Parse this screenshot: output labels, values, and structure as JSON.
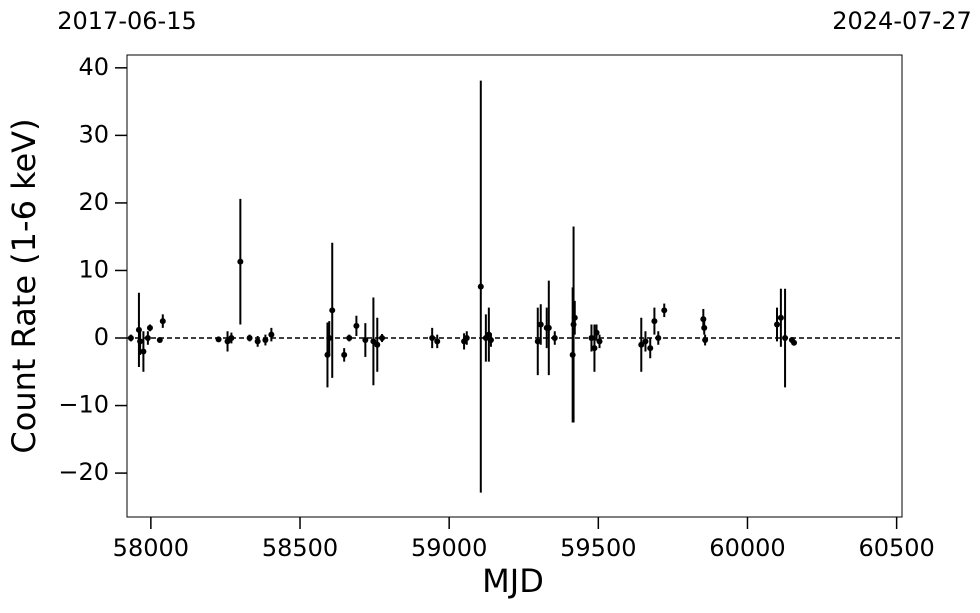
{
  "chart_data": {
    "type": "errorbar",
    "xlabel": "MJD",
    "ylabel": "Count Rate (1-6 keV)",
    "x": [
      57933,
      57960,
      57964,
      57975,
      57990,
      57997,
      58030,
      58040,
      58227,
      58257,
      58270,
      58300,
      58331,
      58358,
      58384,
      58404,
      58592,
      58598,
      58608,
      58648,
      58665,
      58689,
      58719,
      58746,
      58759,
      58775,
      58943,
      58960,
      59050,
      59059,
      59106,
      59123,
      59133,
      59140,
      59297,
      59307,
      59327,
      59334,
      59354,
      59414,
      59417,
      59421,
      59477,
      59487,
      59494,
      59504,
      59644,
      59658,
      59674,
      59688,
      59701,
      59721,
      59852,
      59855,
      59858,
      60099,
      60112,
      60126,
      60149,
      60156
    ],
    "values": [
      0,
      1.2,
      -0.5,
      -2,
      0,
      1.5,
      -0.3,
      2.5,
      -0.2,
      -0.5,
      0,
      11.3,
      0,
      -0.5,
      -0.3,
      0.5,
      -2.5,
      0,
      4.1,
      -2.5,
      0,
      1.8,
      -0.3,
      -0.5,
      -1,
      0,
      0,
      -0.5,
      -0.5,
      0,
      7.6,
      0,
      0.5,
      -0.3,
      -0.5,
      2,
      1.5,
      1.5,
      0,
      -2.5,
      2,
      3,
      0,
      -1.5,
      0.8,
      -0.5,
      -1,
      -0.5,
      -1.5,
      2.5,
      0,
      4.1,
      2.8,
      1.5,
      -0.3,
      2,
      3,
      0,
      -0.3,
      -0.7
    ],
    "errors": [
      0.5,
      5.5,
      2,
      3,
      1,
      0.5,
      0.3,
      1,
      0.3,
      1.5,
      0.8,
      9.3,
      0.5,
      0.8,
      0.8,
      1,
      4.8,
      2.5,
      10,
      1,
      0.5,
      1.5,
      2.5,
      6.5,
      4,
      0.6,
      1.5,
      1,
      1.2,
      1,
      30.5,
      3.5,
      4,
      1,
      5,
      3,
      3,
      7,
      1,
      10,
      14.5,
      2.5,
      2,
      3.5,
      1.2,
      1,
      4,
      1.5,
      1.5,
      2,
      1,
      1,
      1.5,
      1,
      0.8,
      2.5,
      4.3,
      7.3,
      0.3,
      0.4
    ],
    "color": "#000000",
    "reference_line": {
      "y": 0,
      "style": "dashed"
    },
    "xlim": [
      57920,
      60518
    ],
    "xticks": [
      58000,
      58500,
      59000,
      59500,
      60000,
      60500
    ],
    "x2ticks": [
      {
        "value": 57920,
        "label": "2017-06-15"
      },
      {
        "value": 60518,
        "label": "2024-07-27"
      }
    ],
    "ylim": [
      -26.5,
      41.9
    ],
    "yticks": [
      {
        "value": -20,
        "label": "−20"
      },
      {
        "value": -10,
        "label": "−10"
      },
      0,
      10,
      20,
      30,
      40
    ]
  }
}
